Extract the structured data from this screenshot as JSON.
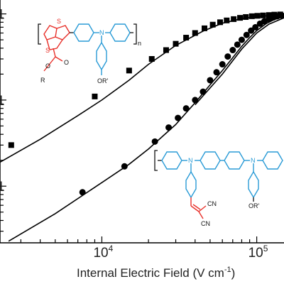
{
  "chart_data": {
    "type": "scatter",
    "xlabel": "Internal Electric Field (V cm",
    "xlabel_sup": "-1",
    "xlabel_close": ")",
    "ylabel": "",
    "x_scale": "log",
    "y_scale": "log",
    "xlim": [
      2200,
      150000
    ],
    "ylim": [
      0.0022,
      1.45
    ],
    "x_tick_labels": [
      {
        "value": 10000,
        "base": "10",
        "exp": "4"
      },
      {
        "value": 100000,
        "base": "10",
        "exp": "5"
      }
    ],
    "y_tick_labels": [
      {
        "value": 1,
        "label": "1"
      },
      {
        "value": 0.1,
        "label": "1"
      },
      {
        "value": 0.01,
        "label": "1"
      }
    ],
    "grid": false,
    "series": [
      {
        "marker": "square",
        "color": "#000000",
        "points": [
          {
            "x": 2600,
            "y": 0.03
          },
          {
            "x": 9000,
            "y": 0.11
          },
          {
            "x": 15000,
            "y": 0.22
          },
          {
            "x": 21000,
            "y": 0.3
          },
          {
            "x": 26000,
            "y": 0.38
          },
          {
            "x": 30000,
            "y": 0.45
          },
          {
            "x": 35000,
            "y": 0.53
          },
          {
            "x": 40000,
            "y": 0.6
          },
          {
            "x": 46000,
            "y": 0.68
          },
          {
            "x": 52000,
            "y": 0.75
          },
          {
            "x": 58000,
            "y": 0.8
          },
          {
            "x": 64000,
            "y": 0.84
          },
          {
            "x": 71000,
            "y": 0.87
          },
          {
            "x": 78000,
            "y": 0.9
          },
          {
            "x": 85000,
            "y": 0.92
          },
          {
            "x": 93000,
            "y": 0.94
          },
          {
            "x": 101000,
            "y": 0.95
          },
          {
            "x": 110000,
            "y": 0.96
          },
          {
            "x": 120000,
            "y": 0.97
          },
          {
            "x": 130000,
            "y": 0.98
          },
          {
            "x": 142000,
            "y": 0.985
          }
        ],
        "fit": [
          {
            "x": 2200,
            "y": 0.019
          },
          {
            "x": 4000,
            "y": 0.035
          },
          {
            "x": 7000,
            "y": 0.066
          },
          {
            "x": 10000,
            "y": 0.1
          },
          {
            "x": 15000,
            "y": 0.17
          },
          {
            "x": 20000,
            "y": 0.26
          },
          {
            "x": 30000,
            "y": 0.43
          },
          {
            "x": 45000,
            "y": 0.63
          },
          {
            "x": 60000,
            "y": 0.78
          },
          {
            "x": 80000,
            "y": 0.88
          },
          {
            "x": 100000,
            "y": 0.93
          },
          {
            "x": 125000,
            "y": 0.96
          },
          {
            "x": 150000,
            "y": 0.97
          }
        ]
      },
      {
        "marker": "circle",
        "color": "#000000",
        "points": [
          {
            "x": 7500,
            "y": 0.0085
          },
          {
            "x": 14000,
            "y": 0.017
          },
          {
            "x": 22000,
            "y": 0.033
          },
          {
            "x": 27000,
            "y": 0.048
          },
          {
            "x": 31000,
            "y": 0.062
          },
          {
            "x": 35000,
            "y": 0.08
          },
          {
            "x": 40000,
            "y": 0.1
          },
          {
            "x": 45000,
            "y": 0.125
          },
          {
            "x": 50000,
            "y": 0.17
          },
          {
            "x": 55000,
            "y": 0.21
          },
          {
            "x": 60000,
            "y": 0.26
          },
          {
            "x": 65000,
            "y": 0.32
          },
          {
            "x": 70000,
            "y": 0.38
          },
          {
            "x": 75000,
            "y": 0.44
          },
          {
            "x": 80000,
            "y": 0.5
          },
          {
            "x": 86000,
            "y": 0.57
          },
          {
            "x": 92000,
            "y": 0.64
          },
          {
            "x": 98000,
            "y": 0.7
          },
          {
            "x": 105000,
            "y": 0.77
          },
          {
            "x": 112000,
            "y": 0.82
          },
          {
            "x": 120000,
            "y": 0.87
          },
          {
            "x": 128000,
            "y": 0.91
          },
          {
            "x": 136000,
            "y": 0.94
          },
          {
            "x": 145000,
            "y": 0.96
          }
        ],
        "fit": [
          {
            "x": 2500,
            "y": 0.0023
          },
          {
            "x": 5000,
            "y": 0.0048
          },
          {
            "x": 10000,
            "y": 0.011
          },
          {
            "x": 15000,
            "y": 0.018
          },
          {
            "x": 20000,
            "y": 0.027
          },
          {
            "x": 30000,
            "y": 0.052
          },
          {
            "x": 40000,
            "y": 0.093
          },
          {
            "x": 50000,
            "y": 0.15
          },
          {
            "x": 60000,
            "y": 0.22
          },
          {
            "x": 70000,
            "y": 0.31
          },
          {
            "x": 80000,
            "y": 0.42
          },
          {
            "x": 90000,
            "y": 0.53
          },
          {
            "x": 100000,
            "y": 0.64
          },
          {
            "x": 115000,
            "y": 0.77
          },
          {
            "x": 130000,
            "y": 0.86
          },
          {
            "x": 150000,
            "y": 0.93
          }
        ],
        "fit2": [
          {
            "x": 40000,
            "y": 0.088
          },
          {
            "x": 60000,
            "y": 0.2
          },
          {
            "x": 80000,
            "y": 0.39
          },
          {
            "x": 100000,
            "y": 0.6
          },
          {
            "x": 120000,
            "y": 0.76
          },
          {
            "x": 150000,
            "y": 0.9
          }
        ]
      }
    ],
    "annotations": {
      "polymer1": {
        "colors": {
          "thiophene": "#e8302a",
          "amine": "#2a9bd6",
          "bond": "#111111"
        },
        "labels": {
          "S1": "S",
          "S2": "S",
          "N": "N",
          "O1": "O",
          "O2": "O",
          "R": "R",
          "ORp": "OR'",
          "n": "n"
        }
      },
      "polymer2": {
        "colors": {
          "amine": "#2a9bd6",
          "vinyl": "#e8302a",
          "bond": "#111111"
        },
        "labels": {
          "N1": "N",
          "N2": "N",
          "CN1": "CN",
          "CN2": "CN",
          "ORp": "OR'"
        }
      }
    }
  }
}
